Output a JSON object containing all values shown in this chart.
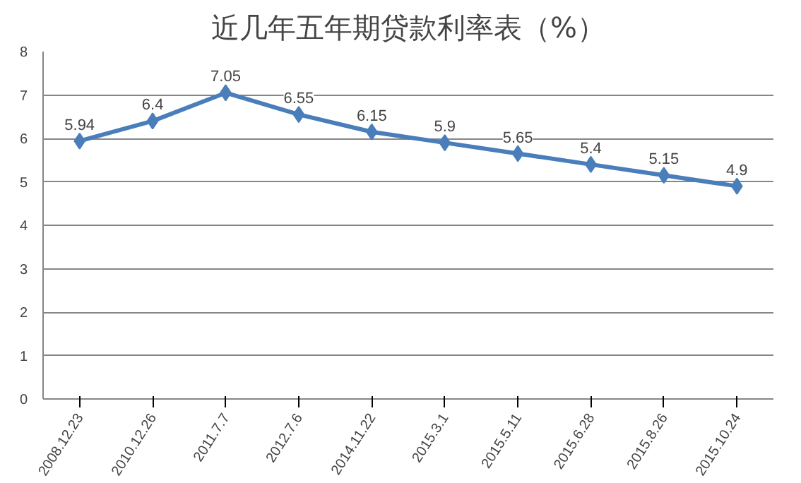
{
  "chart_data": {
    "type": "line",
    "title": "近几年五年期贷款利率表（%）",
    "categories": [
      "2008.12.23",
      "2010.12.26",
      "2011.7.7",
      "2012.7.6",
      "2014.11.22",
      "2015.3.1",
      "2015.5.11",
      "2015.6.28",
      "2015.8.26",
      "2015.10.24"
    ],
    "series": [
      {
        "color": "#4a7ebb",
        "values": [
          5.94,
          6.4,
          7.05,
          6.55,
          6.15,
          5.9,
          5.65,
          5.4,
          5.15,
          4.9
        ]
      }
    ],
    "ylim": [
      0,
      8
    ],
    "yticks": [
      0,
      1,
      2,
      3,
      4,
      5,
      6,
      7,
      8
    ],
    "grid": "y",
    "marker": "diamond",
    "line_style": "solid",
    "data_labels": true
  }
}
